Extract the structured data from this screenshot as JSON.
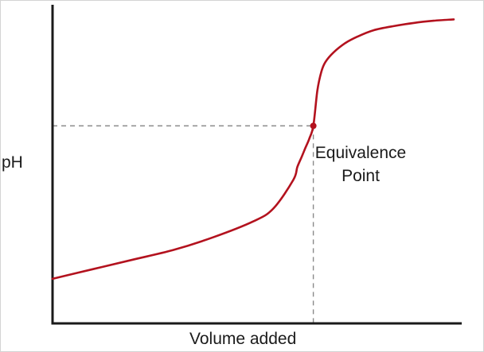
{
  "chart_data": {
    "type": "line",
    "title": "",
    "xlabel": "Volume added",
    "ylabel": "pH",
    "grid": false,
    "legend": "none",
    "x_range": [
      0,
      100
    ],
    "y_range": [
      0,
      100
    ],
    "series": [
      {
        "color": "#b3121e",
        "x": [
          0,
          10,
          20,
          30,
          40,
          50,
          55,
          60,
          61,
          62,
          63,
          64,
          65,
          66,
          67,
          68,
          70,
          73,
          76,
          80,
          85,
          90,
          95,
          100
        ],
        "y": [
          14,
          17,
          20,
          23,
          27,
          32,
          36,
          45,
          49,
          52,
          55,
          58,
          62,
          73,
          79,
          82,
          85,
          88,
          90,
          92,
          93.3,
          94.3,
          95,
          95.4
        ]
      }
    ],
    "annotations": [
      {
        "text": "Equivalence Point",
        "x": 65,
        "y": 62,
        "color": "#b3121e",
        "style": "point with dashed guide lines to both axes"
      }
    ]
  }
}
